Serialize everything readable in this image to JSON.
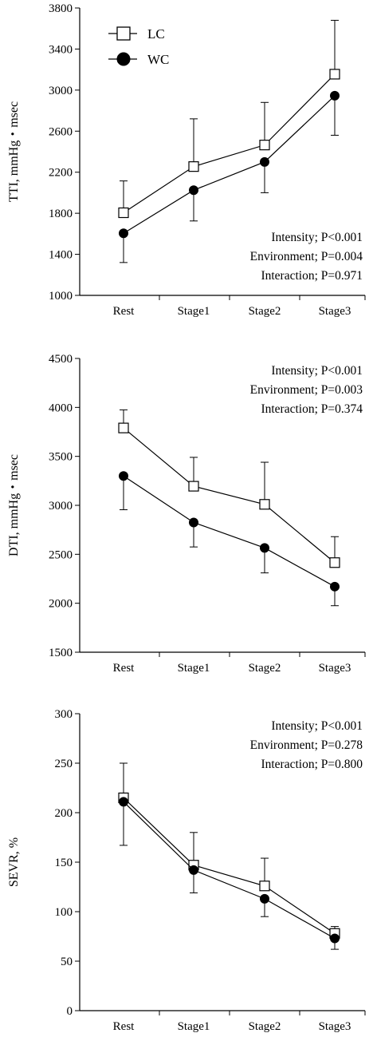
{
  "legend": [
    {
      "name": "LC",
      "marker": "open-square"
    },
    {
      "name": "WC",
      "marker": "filled-circle"
    }
  ],
  "chart_data": [
    {
      "type": "line",
      "ylabel": "TTI, mmHg・msec",
      "categories": [
        "Rest",
        "Stage1",
        "Stage2",
        "Stage3"
      ],
      "ylim": [
        1000,
        3800
      ],
      "yticks": [
        1000,
        1400,
        1800,
        2200,
        2600,
        3000,
        3400,
        3800
      ],
      "series": [
        {
          "name": "LC",
          "values": [
            1805,
            2255,
            2465,
            3155
          ],
          "error_upper": [
            2115,
            2720,
            2880,
            3680
          ]
        },
        {
          "name": "WC",
          "values": [
            1605,
            2025,
            2300,
            2945
          ],
          "error_lower": [
            1320,
            1725,
            2000,
            2560
          ]
        }
      ],
      "annotations": [
        "Intensity; P<0.001",
        "Environment; P=0.004",
        "Interaction; P=0.971"
      ],
      "annotation_position": "bottom-right",
      "grid": false
    },
    {
      "type": "line",
      "ylabel": "DTI, mmHg・msec",
      "categories": [
        "Rest",
        "Stage1",
        "Stage2",
        "Stage3"
      ],
      "ylim": [
        1500,
        4500
      ],
      "yticks": [
        1500,
        2000,
        2500,
        3000,
        3500,
        4000,
        4500
      ],
      "series": [
        {
          "name": "LC",
          "values": [
            3790,
            3195,
            3010,
            2415
          ],
          "error_upper": [
            3975,
            3490,
            3440,
            2680
          ]
        },
        {
          "name": "WC",
          "values": [
            3300,
            2825,
            2565,
            2170
          ],
          "error_lower": [
            2955,
            2575,
            2310,
            1975
          ]
        }
      ],
      "annotations": [
        "Intensity; P<0.001",
        "Environment; P=0.003",
        "Interaction; P=0.374"
      ],
      "annotation_position": "top-right",
      "grid": false
    },
    {
      "type": "line",
      "ylabel": "SEVR, %",
      "categories": [
        "Rest",
        "Stage1",
        "Stage2",
        "Stage3"
      ],
      "ylim": [
        0,
        300
      ],
      "yticks": [
        0,
        50,
        100,
        150,
        200,
        250,
        300
      ],
      "series": [
        {
          "name": "LC",
          "values": [
            215,
            147,
            126,
            78
          ],
          "error_upper": [
            250,
            180,
            154,
            85
          ]
        },
        {
          "name": "WC",
          "values": [
            211,
            142,
            113,
            73
          ],
          "error_lower": [
            167,
            119,
            95,
            62
          ]
        }
      ],
      "annotations": [
        "Intensity; P<0.001",
        "Environment; P=0.278",
        "Interaction; P=0.800"
      ],
      "annotation_position": "top-right",
      "grid": false
    }
  ]
}
